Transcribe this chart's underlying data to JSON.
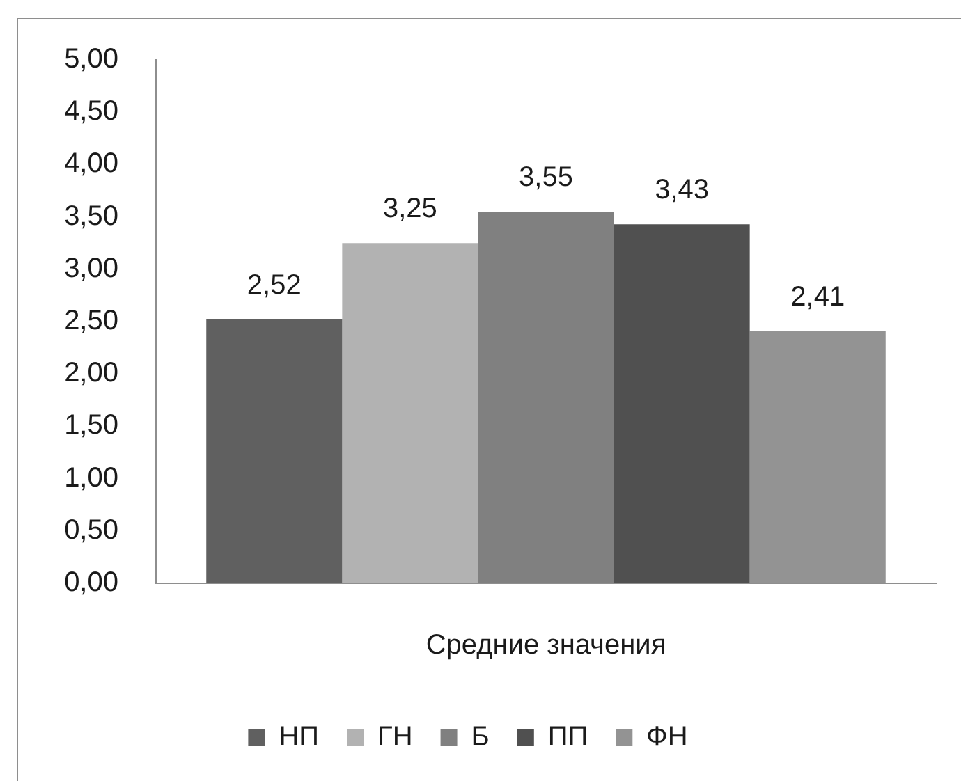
{
  "chart_data": {
    "type": "bar",
    "categories": [
      "Средние значения"
    ],
    "series": [
      {
        "name": "НП",
        "color": "#606060",
        "values": [
          2.52
        ],
        "value_labels": [
          "2,52"
        ]
      },
      {
        "name": "ГН",
        "color": "#b2b2b2",
        "values": [
          3.25
        ],
        "value_labels": [
          "3,25"
        ]
      },
      {
        "name": "Б",
        "color": "#808080",
        "values": [
          3.55
        ],
        "value_labels": [
          "3,55"
        ]
      },
      {
        "name": "ПП",
        "color": "#505050",
        "values": [
          3.43
        ],
        "value_labels": [
          "3,43"
        ]
      },
      {
        "name": "ФН",
        "color": "#939393",
        "values": [
          2.41
        ],
        "value_labels": [
          "2,41"
        ]
      }
    ],
    "ylim": [
      0,
      5
    ],
    "yticks": [
      {
        "value": 0,
        "label": "0,00"
      },
      {
        "value": 0.5,
        "label": "0,50"
      },
      {
        "value": 1,
        "label": "1,00"
      },
      {
        "value": 1.5,
        "label": "1,50"
      },
      {
        "value": 2,
        "label": "2,00"
      },
      {
        "value": 2.5,
        "label": "2,50"
      },
      {
        "value": 3,
        "label": "3,00"
      },
      {
        "value": 3.5,
        "label": "3,50"
      },
      {
        "value": 4,
        "label": "4,00"
      },
      {
        "value": 4.5,
        "label": "4,50"
      },
      {
        "value": 5,
        "label": "5,00"
      }
    ],
    "legend": "bottom"
  }
}
